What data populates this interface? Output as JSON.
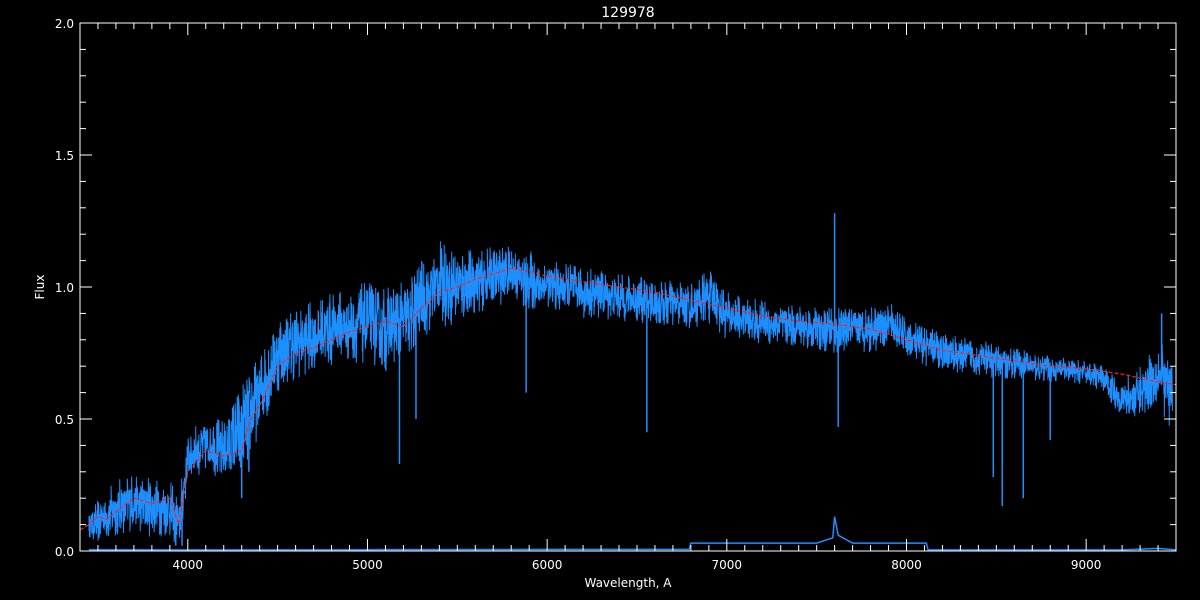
{
  "chart_data": {
    "type": "line",
    "title": "129978",
    "xlabel": "Wavelength, A",
    "ylabel": "Flux",
    "xlim": [
      3400,
      9500
    ],
    "ylim": [
      0,
      2.0
    ],
    "xticks": [
      "4000",
      "5000",
      "6000",
      "7000",
      "8000",
      "9000"
    ],
    "yticks": [
      "0.0",
      "0.5",
      "1.0",
      "1.5",
      "2.0"
    ],
    "grid": false,
    "colors": {
      "background": "#000000",
      "axes": "#ffffff",
      "observed": "#1e8fff",
      "model": "#ff2020"
    },
    "series": [
      {
        "key": "observed",
        "envelope_columns": [
          "wavelength",
          "low",
          "high"
        ],
        "envelope": [
          [
            3450,
            0.05,
            0.15
          ],
          [
            3500,
            0.03,
            0.2
          ],
          [
            3600,
            0.05,
            0.27
          ],
          [
            3700,
            0.08,
            0.3
          ],
          [
            3800,
            0.05,
            0.28
          ],
          [
            3900,
            0.05,
            0.27
          ],
          [
            3950,
            0.0,
            0.2
          ],
          [
            4000,
            0.25,
            0.45
          ],
          [
            4100,
            0.3,
            0.52
          ],
          [
            4200,
            0.25,
            0.5
          ],
          [
            4300,
            0.25,
            0.65
          ],
          [
            4400,
            0.45,
            0.75
          ],
          [
            4500,
            0.6,
            0.9
          ],
          [
            4600,
            0.65,
            0.92
          ],
          [
            4700,
            0.68,
            0.95
          ],
          [
            4800,
            0.7,
            0.98
          ],
          [
            4900,
            0.72,
            1.0
          ],
          [
            5000,
            0.7,
            1.02
          ],
          [
            5100,
            0.68,
            1.0
          ],
          [
            5200,
            0.7,
            1.02
          ],
          [
            5300,
            0.8,
            1.1
          ],
          [
            5400,
            0.85,
            1.18
          ],
          [
            5500,
            0.85,
            1.15
          ],
          [
            5600,
            0.9,
            1.15
          ],
          [
            5700,
            0.92,
            1.15
          ],
          [
            5800,
            0.95,
            1.16
          ],
          [
            5900,
            0.9,
            1.14
          ],
          [
            6000,
            0.92,
            1.1
          ],
          [
            6200,
            0.88,
            1.08
          ],
          [
            6400,
            0.87,
            1.05
          ],
          [
            6600,
            0.85,
            1.03
          ],
          [
            6800,
            0.84,
            1.02
          ],
          [
            6900,
            0.86,
            1.08
          ],
          [
            7000,
            0.8,
            0.98
          ],
          [
            7200,
            0.78,
            0.95
          ],
          [
            7400,
            0.77,
            0.93
          ],
          [
            7600,
            0.75,
            0.92
          ],
          [
            7800,
            0.75,
            0.93
          ],
          [
            7900,
            0.78,
            0.95
          ],
          [
            8000,
            0.72,
            0.88
          ],
          [
            8200,
            0.68,
            0.83
          ],
          [
            8400,
            0.66,
            0.8
          ],
          [
            8600,
            0.65,
            0.77
          ],
          [
            8800,
            0.64,
            0.74
          ],
          [
            9000,
            0.63,
            0.72
          ],
          [
            9100,
            0.6,
            0.7
          ],
          [
            9200,
            0.5,
            0.65
          ],
          [
            9300,
            0.5,
            0.7
          ],
          [
            9400,
            0.55,
            0.8
          ],
          [
            9480,
            0.45,
            0.75
          ]
        ],
        "features": [
          [
            3933,
            0.02
          ],
          [
            3968,
            0.02
          ],
          [
            4300,
            0.2
          ],
          [
            4340,
            0.3
          ],
          [
            5178,
            0.33
          ],
          [
            5270,
            0.5
          ],
          [
            5883,
            0.6
          ],
          [
            6555,
            0.45
          ],
          [
            7600,
            1.28
          ],
          [
            7620,
            0.47
          ],
          [
            8483,
            0.28
          ],
          [
            8533,
            0.17
          ],
          [
            8650,
            0.2
          ],
          [
            8800,
            0.42
          ],
          [
            9420,
            0.9
          ]
        ]
      },
      {
        "key": "model",
        "x": [
          3400,
          3450,
          3500,
          3550,
          3600,
          3700,
          3800,
          3900,
          3950,
          4000,
          4100,
          4200,
          4300,
          4350,
          4400,
          4500,
          4600,
          4700,
          4800,
          4900,
          5000,
          5100,
          5200,
          5300,
          5400,
          5500,
          5600,
          5700,
          5800,
          5900,
          6000,
          6200,
          6400,
          6600,
          6800,
          7000,
          7200,
          7400,
          7600,
          7800,
          8000,
          8200,
          8400,
          8600,
          8800,
          9000,
          9200,
          9400,
          9500
        ],
        "y": [
          0.08,
          0.1,
          0.13,
          0.12,
          0.15,
          0.2,
          0.18,
          0.2,
          0.1,
          0.3,
          0.38,
          0.36,
          0.38,
          0.5,
          0.55,
          0.7,
          0.75,
          0.77,
          0.8,
          0.83,
          0.85,
          0.87,
          0.85,
          0.92,
          0.98,
          1.0,
          1.03,
          1.05,
          1.07,
          1.06,
          1.04,
          1.02,
          1.0,
          0.98,
          0.95,
          0.92,
          0.89,
          0.87,
          0.86,
          0.84,
          0.8,
          0.76,
          0.74,
          0.72,
          0.7,
          0.69,
          0.67,
          0.64,
          0.63
        ]
      },
      {
        "key": "error",
        "x": [
          3450,
          4000,
          5000,
          6000,
          6790,
          6800,
          7500,
          7590,
          7600,
          7620,
          7700,
          8110,
          8120,
          9200,
          9400,
          9500
        ],
        "y": [
          0.005,
          0.004,
          0.005,
          0.006,
          0.006,
          0.03,
          0.03,
          0.05,
          0.13,
          0.06,
          0.03,
          0.03,
          0.004,
          0.004,
          0.01,
          0.004
        ]
      }
    ]
  }
}
